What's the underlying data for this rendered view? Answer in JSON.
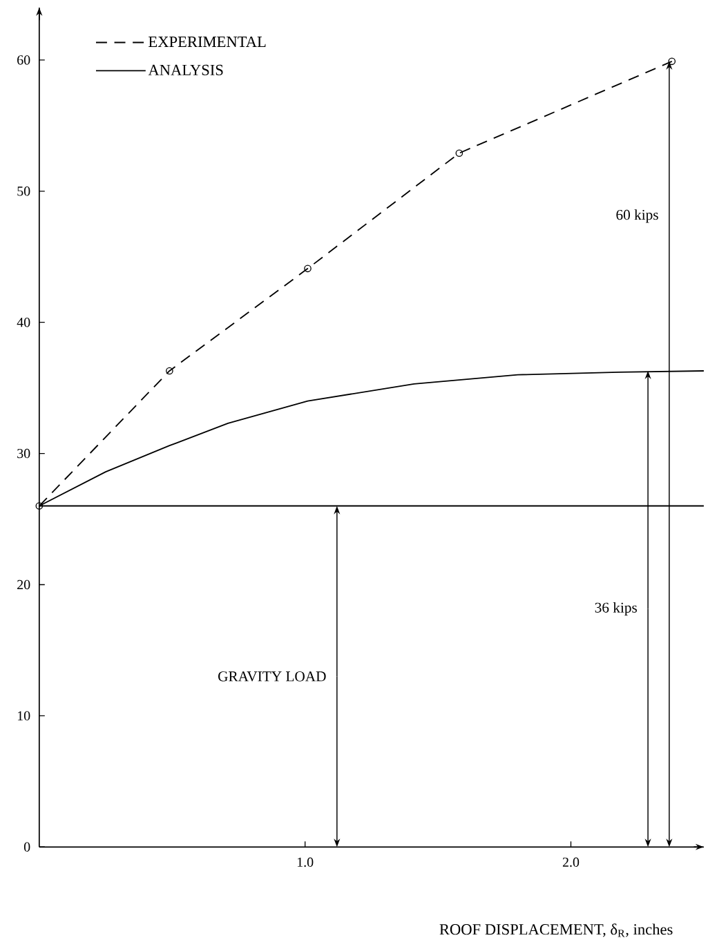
{
  "chart_data": {
    "type": "line",
    "xlabel": "ROOF DISPLACEMENT, δ$_{R}$, inches",
    "xlim": [
      0,
      2.5
    ],
    "ylim": [
      0,
      64
    ],
    "xticks": [
      {
        "value": 1,
        "label": "1.0"
      },
      {
        "value": 2,
        "label": "2.0"
      }
    ],
    "yticks": [
      0,
      10,
      20,
      30,
      40,
      50,
      60
    ],
    "grid": false,
    "legend": "top left",
    "series": [
      {
        "name": "EXPERIMENTAL",
        "color": "#000000",
        "line_style": "dashed",
        "marker": "circle",
        "x": [
          0,
          0.49,
          1.01,
          1.58,
          2.38
        ],
        "values": [
          26,
          36.3,
          44.1,
          52.9,
          59.9
        ]
      },
      {
        "name": "ANALYSIS",
        "color": "#000000",
        "line_style": "solid",
        "marker": "none",
        "x": [
          0,
          0.25,
          0.49,
          0.71,
          1.01,
          1.41,
          1.8,
          2.18,
          2.5
        ],
        "values": [
          26,
          28.6,
          30.6,
          32.3,
          34.0,
          35.3,
          36.0,
          36.2,
          36.3
        ]
      }
    ],
    "ref_lines": [
      {
        "axis": "y",
        "value": 26,
        "color": "#000000"
      }
    ],
    "annotations": [
      {
        "text": "GRAVITY LOAD",
        "x": 1.12,
        "y": 26
      },
      {
        "text": "36 kips",
        "x": 2.29,
        "y": 36.3
      },
      {
        "text": "60 kips",
        "x": 2.37,
        "y": 59.9
      }
    ]
  }
}
